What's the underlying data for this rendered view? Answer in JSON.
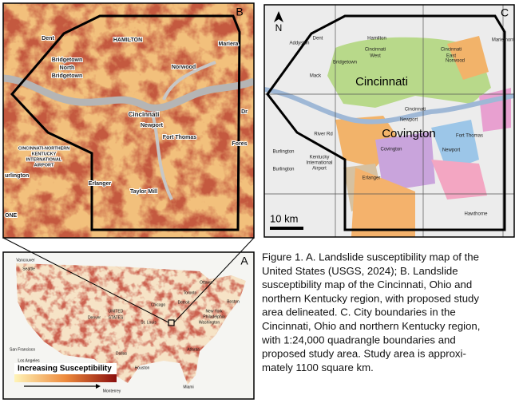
{
  "panel_b": {
    "letter": "B",
    "labels": [
      "Dent",
      "HAMILTON",
      "Mariera",
      "Bridgetown",
      "North",
      "Bridgetown",
      "Norwood",
      "Cincinnati",
      "Newport",
      "Fort Thomas",
      "CINCINNATI-NORTHERN",
      "KENTUCKY",
      "INTERNATIONAL",
      "AIRPORT",
      "urlington",
      "Erlanger",
      "Taylor Mill",
      "Fores",
      "Dr",
      "ONE"
    ]
  },
  "panel_c": {
    "letter": "C",
    "north": "N",
    "scale": "10 km",
    "cities": [
      "Cincinnati",
      "Covington"
    ],
    "labels": [
      "Dent",
      "Addyston",
      "Hamilton",
      "Cincinnati",
      "West",
      "Cincinnati",
      "East",
      "Bridgetown",
      "Norwood",
      "Mack",
      "Mariemont",
      "Cincinnati",
      "Newport",
      "River Rd",
      "Fort Thomas",
      "Covington",
      "Newport",
      "Burlington",
      "Kentucky",
      "International",
      "Airport",
      "Erlanger",
      "Burlington",
      "Hawthorne"
    ]
  },
  "panel_a": {
    "letter": "A",
    "legend": "Increasing Susceptibility",
    "labels": [
      "Vancouver",
      "Seattle",
      "Ottawa",
      "Toronto",
      "Boston",
      "Chicago",
      "Detroit",
      "UNITED",
      "STATES",
      "Denver",
      "New York",
      "Philadelphia",
      "Washington",
      "St. Louis",
      "San Francisco",
      "Los Angeles",
      "Atlanta",
      "Dallas",
      "Houston",
      "Miami",
      "Monterrey"
    ]
  },
  "caption": [
    "Figure 1. A. Landslide susceptibility map of the",
    "United States (USGS, 2024); B. Landslide",
    "susceptibility map of the Cincinnati, Ohio and",
    "northern Kentucky region, with proposed study",
    "area delineated. C. City boundaries in the",
    "Cincinnati, Ohio and northern Kentucky region,",
    "with 1:24,000 quadrangle boundaries and",
    "proposed study area. Study area is approxi-",
    "mately 1100 square km."
  ]
}
